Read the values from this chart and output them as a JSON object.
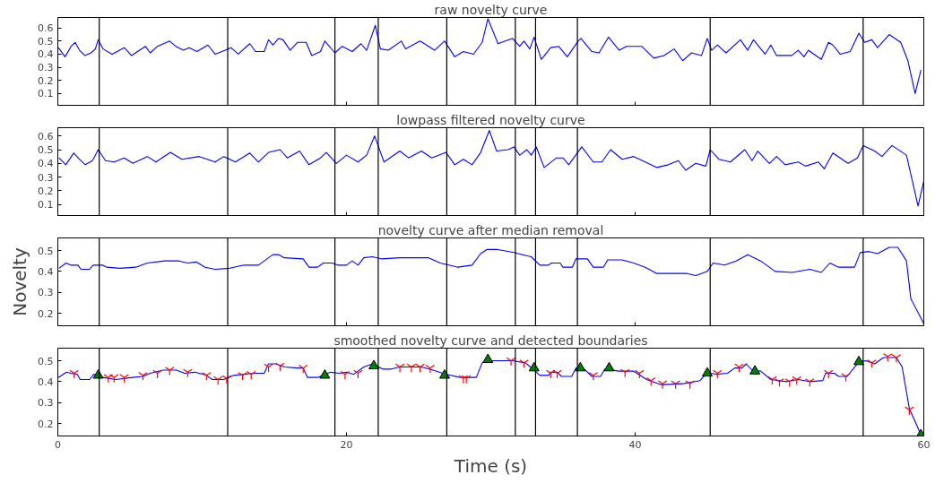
{
  "chart_data": [
    {
      "type": "line",
      "title": "raw novelty curve",
      "xlim": [
        0,
        60
      ],
      "xticks": [
        0,
        20,
        40,
        60
      ],
      "ylim": [
        0.01,
        0.68
      ],
      "yticks": [
        0.1,
        0.2,
        0.3,
        0.4,
        0.5,
        0.6
      ],
      "tick_labels": "y",
      "grid": false,
      "marker": "none",
      "line_style": "solid",
      "series": [
        {
          "color": "#0000ff",
          "x": [
            0.04,
            0.5,
            0.82,
            0.92,
            1.2,
            1.5,
            1.87,
            2.3,
            2.6,
            2.8,
            3.13,
            3.76,
            4.6,
            5.1,
            6.07,
            6.4,
            6.9,
            7.75,
            8.17,
            8.7,
            9.1,
            9.64,
            10.4,
            10.9,
            11.6,
            12.0,
            12.5,
            13.3,
            13.7,
            14.3,
            14.6,
            14.9,
            15.3,
            15.6,
            16.1,
            16.6,
            17.2,
            17.6,
            18.2,
            18.5,
            19.2,
            19.7,
            20.4,
            21.0,
            21.4,
            22.0,
            22.35,
            22.9,
            23.8,
            24.1,
            25.1,
            26.1,
            26.8,
            27.5,
            28.1,
            28.8,
            29.4,
            29.8,
            30.5,
            31.0,
            31.5,
            32.0,
            32.3,
            32.7,
            33.0,
            33.5,
            34.15,
            34.7,
            35.3,
            36.05,
            36.25,
            37.0,
            37.5,
            38.15,
            38.9,
            39.4,
            40.45,
            41.3,
            42.0,
            42.7,
            43.3,
            43.9,
            44.6,
            45.0,
            45.3,
            45.7,
            46.3,
            47.3,
            47.8,
            48.2,
            49.0,
            49.4,
            49.8,
            50.85,
            51.3,
            51.7,
            52.0,
            52.9,
            53.4,
            53.7,
            54.2,
            54.9,
            55.5,
            55.9,
            56.4,
            56.8,
            57.6,
            58.4,
            58.9,
            59.4,
            59.8
          ],
          "values": [
            0.45,
            0.38,
            0.44,
            0.46,
            0.49,
            0.43,
            0.39,
            0.41,
            0.44,
            0.51,
            0.44,
            0.4,
            0.45,
            0.39,
            0.46,
            0.41,
            0.46,
            0.5,
            0.46,
            0.43,
            0.45,
            0.42,
            0.47,
            0.4,
            0.43,
            0.45,
            0.4,
            0.48,
            0.42,
            0.42,
            0.51,
            0.47,
            0.52,
            0.51,
            0.43,
            0.49,
            0.49,
            0.39,
            0.42,
            0.5,
            0.41,
            0.46,
            0.42,
            0.48,
            0.43,
            0.62,
            0.44,
            0.43,
            0.5,
            0.44,
            0.5,
            0.43,
            0.5,
            0.38,
            0.42,
            0.4,
            0.49,
            0.67,
            0.48,
            0.5,
            0.52,
            0.46,
            0.5,
            0.44,
            0.53,
            0.36,
            0.45,
            0.46,
            0.38,
            0.5,
            0.52,
            0.42,
            0.41,
            0.53,
            0.43,
            0.46,
            0.46,
            0.37,
            0.39,
            0.44,
            0.35,
            0.41,
            0.39,
            0.52,
            0.43,
            0.47,
            0.41,
            0.51,
            0.43,
            0.51,
            0.4,
            0.47,
            0.39,
            0.39,
            0.43,
            0.38,
            0.43,
            0.36,
            0.49,
            0.47,
            0.4,
            0.42,
            0.56,
            0.49,
            0.51,
            0.45,
            0.55,
            0.49,
            0.35,
            0.1,
            0.28
          ]
        }
      ],
      "ref_lines": [
        {
          "axis": "x",
          "value": 2.87,
          "color": "#000000"
        },
        {
          "axis": "x",
          "value": 11.77,
          "color": "#000000"
        },
        {
          "axis": "x",
          "value": 19.2,
          "color": "#000000"
        },
        {
          "axis": "x",
          "value": 22.2,
          "color": "#000000"
        },
        {
          "axis": "x",
          "value": 26.95,
          "color": "#000000"
        },
        {
          "axis": "x",
          "value": 31.7,
          "color": "#000000"
        },
        {
          "axis": "x",
          "value": 33.1,
          "color": "#000000"
        },
        {
          "axis": "x",
          "value": 36.0,
          "color": "#000000"
        },
        {
          "axis": "x",
          "value": 45.2,
          "color": "#000000"
        },
        {
          "axis": "x",
          "value": 55.8,
          "color": "#000000"
        }
      ]
    },
    {
      "type": "line",
      "title": "lowpass filtered novelty curve",
      "xlim": [
        0,
        60
      ],
      "xticks": [
        0,
        20,
        40,
        60
      ],
      "ylim": [
        0.02,
        0.66
      ],
      "yticks": [
        0.1,
        0.2,
        0.3,
        0.4,
        0.5,
        0.6
      ],
      "tick_labels": "y",
      "grid": false,
      "marker": "none",
      "line_style": "solid",
      "series": [
        {
          "color": "#0000ff",
          "x": [
            0.08,
            0.55,
            1.1,
            1.5,
            1.9,
            2.4,
            2.8,
            3.3,
            3.9,
            4.6,
            5.2,
            6.2,
            6.8,
            7.8,
            8.6,
            9.8,
            10.9,
            11.5,
            12.3,
            13.3,
            13.9,
            14.6,
            15.4,
            15.9,
            16.75,
            17.4,
            18.2,
            18.6,
            19.3,
            20.0,
            20.8,
            21.4,
            21.95,
            22.6,
            23.7,
            24.3,
            25.2,
            25.9,
            26.9,
            27.5,
            28.1,
            28.7,
            29.3,
            29.9,
            30.4,
            31.2,
            31.6,
            32.0,
            32.5,
            32.8,
            33.15,
            33.7,
            34.55,
            35.0,
            35.4,
            36.3,
            37.1,
            37.7,
            38.3,
            39.1,
            39.9,
            40.7,
            41.5,
            42.3,
            43.0,
            43.5,
            44.2,
            44.9,
            45.2,
            45.8,
            46.6,
            47.6,
            48.1,
            48.5,
            49.3,
            49.8,
            50.4,
            51.3,
            51.8,
            52.7,
            53.1,
            53.7,
            54.75,
            55.4,
            55.8,
            56.6,
            57.1,
            57.8,
            58.8,
            59.6,
            60.0
          ],
          "values": [
            0.44,
            0.39,
            0.475,
            0.43,
            0.39,
            0.42,
            0.5,
            0.42,
            0.41,
            0.44,
            0.4,
            0.45,
            0.41,
            0.48,
            0.43,
            0.45,
            0.41,
            0.45,
            0.41,
            0.475,
            0.41,
            0.48,
            0.5,
            0.44,
            0.49,
            0.39,
            0.44,
            0.48,
            0.4,
            0.46,
            0.41,
            0.46,
            0.6,
            0.41,
            0.49,
            0.44,
            0.49,
            0.44,
            0.48,
            0.39,
            0.43,
            0.39,
            0.48,
            0.64,
            0.49,
            0.5,
            0.52,
            0.46,
            0.5,
            0.46,
            0.52,
            0.37,
            0.44,
            0.44,
            0.39,
            0.52,
            0.41,
            0.41,
            0.5,
            0.43,
            0.45,
            0.41,
            0.37,
            0.39,
            0.42,
            0.35,
            0.4,
            0.38,
            0.5,
            0.43,
            0.41,
            0.5,
            0.42,
            0.49,
            0.4,
            0.45,
            0.39,
            0.41,
            0.38,
            0.41,
            0.36,
            0.475,
            0.4,
            0.44,
            0.53,
            0.49,
            0.45,
            0.53,
            0.46,
            0.09,
            0.27
          ]
        }
      ],
      "ref_lines": [
        {
          "axis": "x",
          "value": 2.87,
          "color": "#000000"
        },
        {
          "axis": "x",
          "value": 11.77,
          "color": "#000000"
        },
        {
          "axis": "x",
          "value": 19.2,
          "color": "#000000"
        },
        {
          "axis": "x",
          "value": 22.2,
          "color": "#000000"
        },
        {
          "axis": "x",
          "value": 26.95,
          "color": "#000000"
        },
        {
          "axis": "x",
          "value": 31.7,
          "color": "#000000"
        },
        {
          "axis": "x",
          "value": 33.1,
          "color": "#000000"
        },
        {
          "axis": "x",
          "value": 36.0,
          "color": "#000000"
        },
        {
          "axis": "x",
          "value": 45.2,
          "color": "#000000"
        },
        {
          "axis": "x",
          "value": 55.8,
          "color": "#000000"
        }
      ]
    },
    {
      "type": "line",
      "title": "novelty curve after median removal",
      "ylabel": "Novelty",
      "xlim": [
        0,
        60
      ],
      "xticks": [
        0,
        20,
        40,
        60
      ],
      "ylim": [
        0.14,
        0.56
      ],
      "yticks": [
        0.2,
        0.3,
        0.4,
        0.5
      ],
      "tick_labels": "y",
      "grid": false,
      "marker": "none",
      "line_style": "solid",
      "series": [
        {
          "color": "#0000ff",
          "x": [
            0.08,
            0.57,
            0.9,
            1.4,
            1.6,
            2.2,
            2.45,
            3.1,
            3.4,
            4.3,
            5.4,
            6.2,
            7.4,
            8.4,
            9.0,
            9.6,
            10.2,
            10.9,
            11.9,
            12.9,
            13.9,
            14.3,
            14.9,
            15.3,
            15.7,
            17.0,
            17.4,
            18.0,
            18.4,
            19.0,
            19.4,
            20.0,
            20.4,
            20.8,
            21.2,
            21.8,
            22.4,
            23.7,
            25.7,
            26.5,
            27.1,
            27.7,
            28.7,
            29.3,
            29.75,
            30.4,
            31.6,
            32.2,
            32.8,
            33.4,
            34.0,
            34.2,
            34.8,
            35.0,
            35.65,
            35.9,
            36.7,
            37.1,
            37.8,
            38.1,
            39.1,
            39.9,
            40.7,
            41.5,
            42.8,
            43.6,
            44.2,
            45.0,
            45.4,
            46.2,
            47.0,
            47.8,
            48.7,
            49.7,
            50.9,
            52.1,
            52.9,
            53.5,
            54.1,
            55.2,
            55.6,
            56.2,
            56.8,
            57.6,
            58.2,
            58.8,
            59.1,
            60.0
          ],
          "values": [
            0.415,
            0.44,
            0.43,
            0.43,
            0.41,
            0.41,
            0.43,
            0.43,
            0.42,
            0.415,
            0.42,
            0.44,
            0.45,
            0.45,
            0.44,
            0.445,
            0.42,
            0.41,
            0.415,
            0.43,
            0.43,
            0.45,
            0.48,
            0.48,
            0.465,
            0.46,
            0.42,
            0.42,
            0.44,
            0.44,
            0.43,
            0.43,
            0.45,
            0.43,
            0.465,
            0.47,
            0.46,
            0.465,
            0.465,
            0.44,
            0.43,
            0.42,
            0.43,
            0.485,
            0.505,
            0.505,
            0.49,
            0.48,
            0.47,
            0.43,
            0.43,
            0.44,
            0.44,
            0.42,
            0.42,
            0.46,
            0.46,
            0.42,
            0.42,
            0.455,
            0.455,
            0.44,
            0.42,
            0.39,
            0.39,
            0.39,
            0.38,
            0.4,
            0.44,
            0.43,
            0.45,
            0.48,
            0.45,
            0.4,
            0.395,
            0.41,
            0.395,
            0.44,
            0.42,
            0.42,
            0.49,
            0.495,
            0.485,
            0.515,
            0.515,
            0.45,
            0.27,
            0.15
          ]
        }
      ],
      "ref_lines": [
        {
          "axis": "x",
          "value": 2.87,
          "color": "#000000"
        },
        {
          "axis": "x",
          "value": 11.77,
          "color": "#000000"
        },
        {
          "axis": "x",
          "value": 19.2,
          "color": "#000000"
        },
        {
          "axis": "x",
          "value": 22.2,
          "color": "#000000"
        },
        {
          "axis": "x",
          "value": 26.95,
          "color": "#000000"
        },
        {
          "axis": "x",
          "value": 31.7,
          "color": "#000000"
        },
        {
          "axis": "x",
          "value": 33.1,
          "color": "#000000"
        },
        {
          "axis": "x",
          "value": 36.0,
          "color": "#000000"
        },
        {
          "axis": "x",
          "value": 45.2,
          "color": "#000000"
        },
        {
          "axis": "x",
          "value": 55.8,
          "color": "#000000"
        }
      ]
    },
    {
      "type": "line",
      "title": "smoothed novelty curve and detected boundaries",
      "xlabel": "Time (s)",
      "xlim": [
        0,
        60
      ],
      "xticks": [
        0,
        20,
        40,
        60
      ],
      "ylim": [
        0.14,
        0.56
      ],
      "yticks": [
        0.2,
        0.3,
        0.4,
        0.5
      ],
      "grid": false,
      "marker": "none",
      "line_style": "solid",
      "series": [
        {
          "color": "#0000ff",
          "x": [
            0.04,
            0.6,
            0.9,
            1.35,
            1.55,
            2.2,
            2.5,
            2.8,
            3.1,
            4.0,
            5.2,
            5.9,
            6.4,
            7.3,
            8.2,
            8.8,
            9.5,
            10.3,
            10.7,
            11.5,
            12.2,
            13.6,
            14.3,
            14.6,
            15.1,
            15.7,
            16.6,
            17.0,
            17.3,
            18.0,
            18.9,
            19.5,
            20.0,
            20.5,
            21.2,
            21.8,
            22.5,
            23.1,
            23.7,
            25.2,
            26.0,
            26.9,
            27.9,
            29.0,
            29.4,
            30.0,
            31.5,
            32.4,
            33.0,
            33.4,
            34.0,
            34.15,
            34.6,
            34.9,
            35.6,
            35.9,
            36.4,
            37.0,
            37.6,
            37.9,
            38.9,
            39.9,
            40.8,
            41.8,
            43.3,
            44.5,
            45.0,
            45.6,
            46.4,
            46.9,
            47.4,
            47.7,
            48.1,
            48.7,
            49.4,
            50.5,
            51.3,
            52.1,
            53.0,
            53.2,
            53.8,
            54.1,
            54.7,
            55.5,
            56.0,
            56.6,
            57.2,
            58.1,
            58.5,
            59.0,
            59.3,
            59.8
          ],
          "values": [
            0.42,
            0.445,
            0.44,
            0.435,
            0.41,
            0.41,
            0.435,
            0.43,
            0.42,
            0.41,
            0.42,
            0.425,
            0.44,
            0.455,
            0.455,
            0.44,
            0.445,
            0.43,
            0.41,
            0.41,
            0.43,
            0.44,
            0.44,
            0.485,
            0.485,
            0.47,
            0.465,
            0.465,
            0.42,
            0.42,
            0.445,
            0.44,
            0.445,
            0.435,
            0.47,
            0.485,
            0.46,
            0.46,
            0.47,
            0.47,
            0.455,
            0.435,
            0.42,
            0.42,
            0.49,
            0.5,
            0.5,
            0.49,
            0.455,
            0.43,
            0.43,
            0.445,
            0.445,
            0.425,
            0.425,
            0.465,
            0.465,
            0.425,
            0.425,
            0.46,
            0.45,
            0.45,
            0.41,
            0.385,
            0.39,
            0.405,
            0.445,
            0.435,
            0.44,
            0.465,
            0.465,
            0.485,
            0.455,
            0.45,
            0.41,
            0.4,
            0.41,
            0.4,
            0.405,
            0.44,
            0.44,
            0.425,
            0.425,
            0.495,
            0.5,
            0.485,
            0.515,
            0.515,
            0.47,
            0.27,
            0.225,
            0.145
          ]
        },
        {
          "type": "scatter",
          "color": "#ff0000",
          "marker": "cross",
          "x": [
            1.13,
            3.5,
            3.9,
            4.6,
            5.9,
            6.9,
            7.75,
            9.0,
            10.3,
            11.1,
            11.7,
            12.8,
            13.4,
            14.6,
            15.4,
            17.0,
            19.9,
            20.8,
            23.7,
            24.5,
            25.1,
            25.8,
            28.1,
            28.3,
            31.4,
            32.3,
            34.15,
            34.6,
            37.1,
            39.3,
            40.3,
            41.1,
            41.9,
            42.8,
            43.8,
            45.7,
            47.2,
            49.5,
            50.0,
            50.7,
            51.2,
            52.1,
            53.4,
            54.6,
            56.4,
            57.5,
            58.1,
            59.0
          ],
          "values": [
            0.44,
            0.42,
            0.42,
            0.42,
            0.43,
            0.44,
            0.455,
            0.445,
            0.43,
            0.41,
            0.415,
            0.43,
            0.435,
            0.47,
            0.475,
            0.465,
            0.435,
            0.44,
            0.47,
            0.47,
            0.47,
            0.465,
            0.415,
            0.415,
            0.5,
            0.49,
            0.44,
            0.44,
            0.43,
            0.445,
            0.44,
            0.405,
            0.39,
            0.39,
            0.39,
            0.44,
            0.47,
            0.41,
            0.4,
            0.4,
            0.41,
            0.4,
            0.44,
            0.425,
            0.49,
            0.52,
            0.515,
            0.265
          ]
        },
        {
          "type": "scatter",
          "color": "#008000",
          "marker": "triangle",
          "x": [
            2.8,
            18.5,
            21.9,
            26.8,
            29.8,
            33.0,
            36.2,
            38.2,
            45.0,
            48.3,
            55.5,
            59.8
          ],
          "values": [
            0.43,
            0.43,
            0.475,
            0.43,
            0.505,
            0.465,
            0.465,
            0.465,
            0.44,
            0.45,
            0.495,
            0.145
          ]
        }
      ],
      "ref_lines": [
        {
          "axis": "x",
          "value": 2.87,
          "color": "#000000"
        },
        {
          "axis": "x",
          "value": 11.77,
          "color": "#000000"
        },
        {
          "axis": "x",
          "value": 19.2,
          "color": "#000000"
        },
        {
          "axis": "x",
          "value": 22.2,
          "color": "#000000"
        },
        {
          "axis": "x",
          "value": 26.95,
          "color": "#000000"
        },
        {
          "axis": "x",
          "value": 31.7,
          "color": "#000000"
        },
        {
          "axis": "x",
          "value": 33.1,
          "color": "#000000"
        },
        {
          "axis": "x",
          "value": 36.0,
          "color": "#000000"
        },
        {
          "axis": "x",
          "value": 45.2,
          "color": "#000000"
        },
        {
          "axis": "x",
          "value": 55.8,
          "color": "#000000"
        }
      ]
    }
  ]
}
